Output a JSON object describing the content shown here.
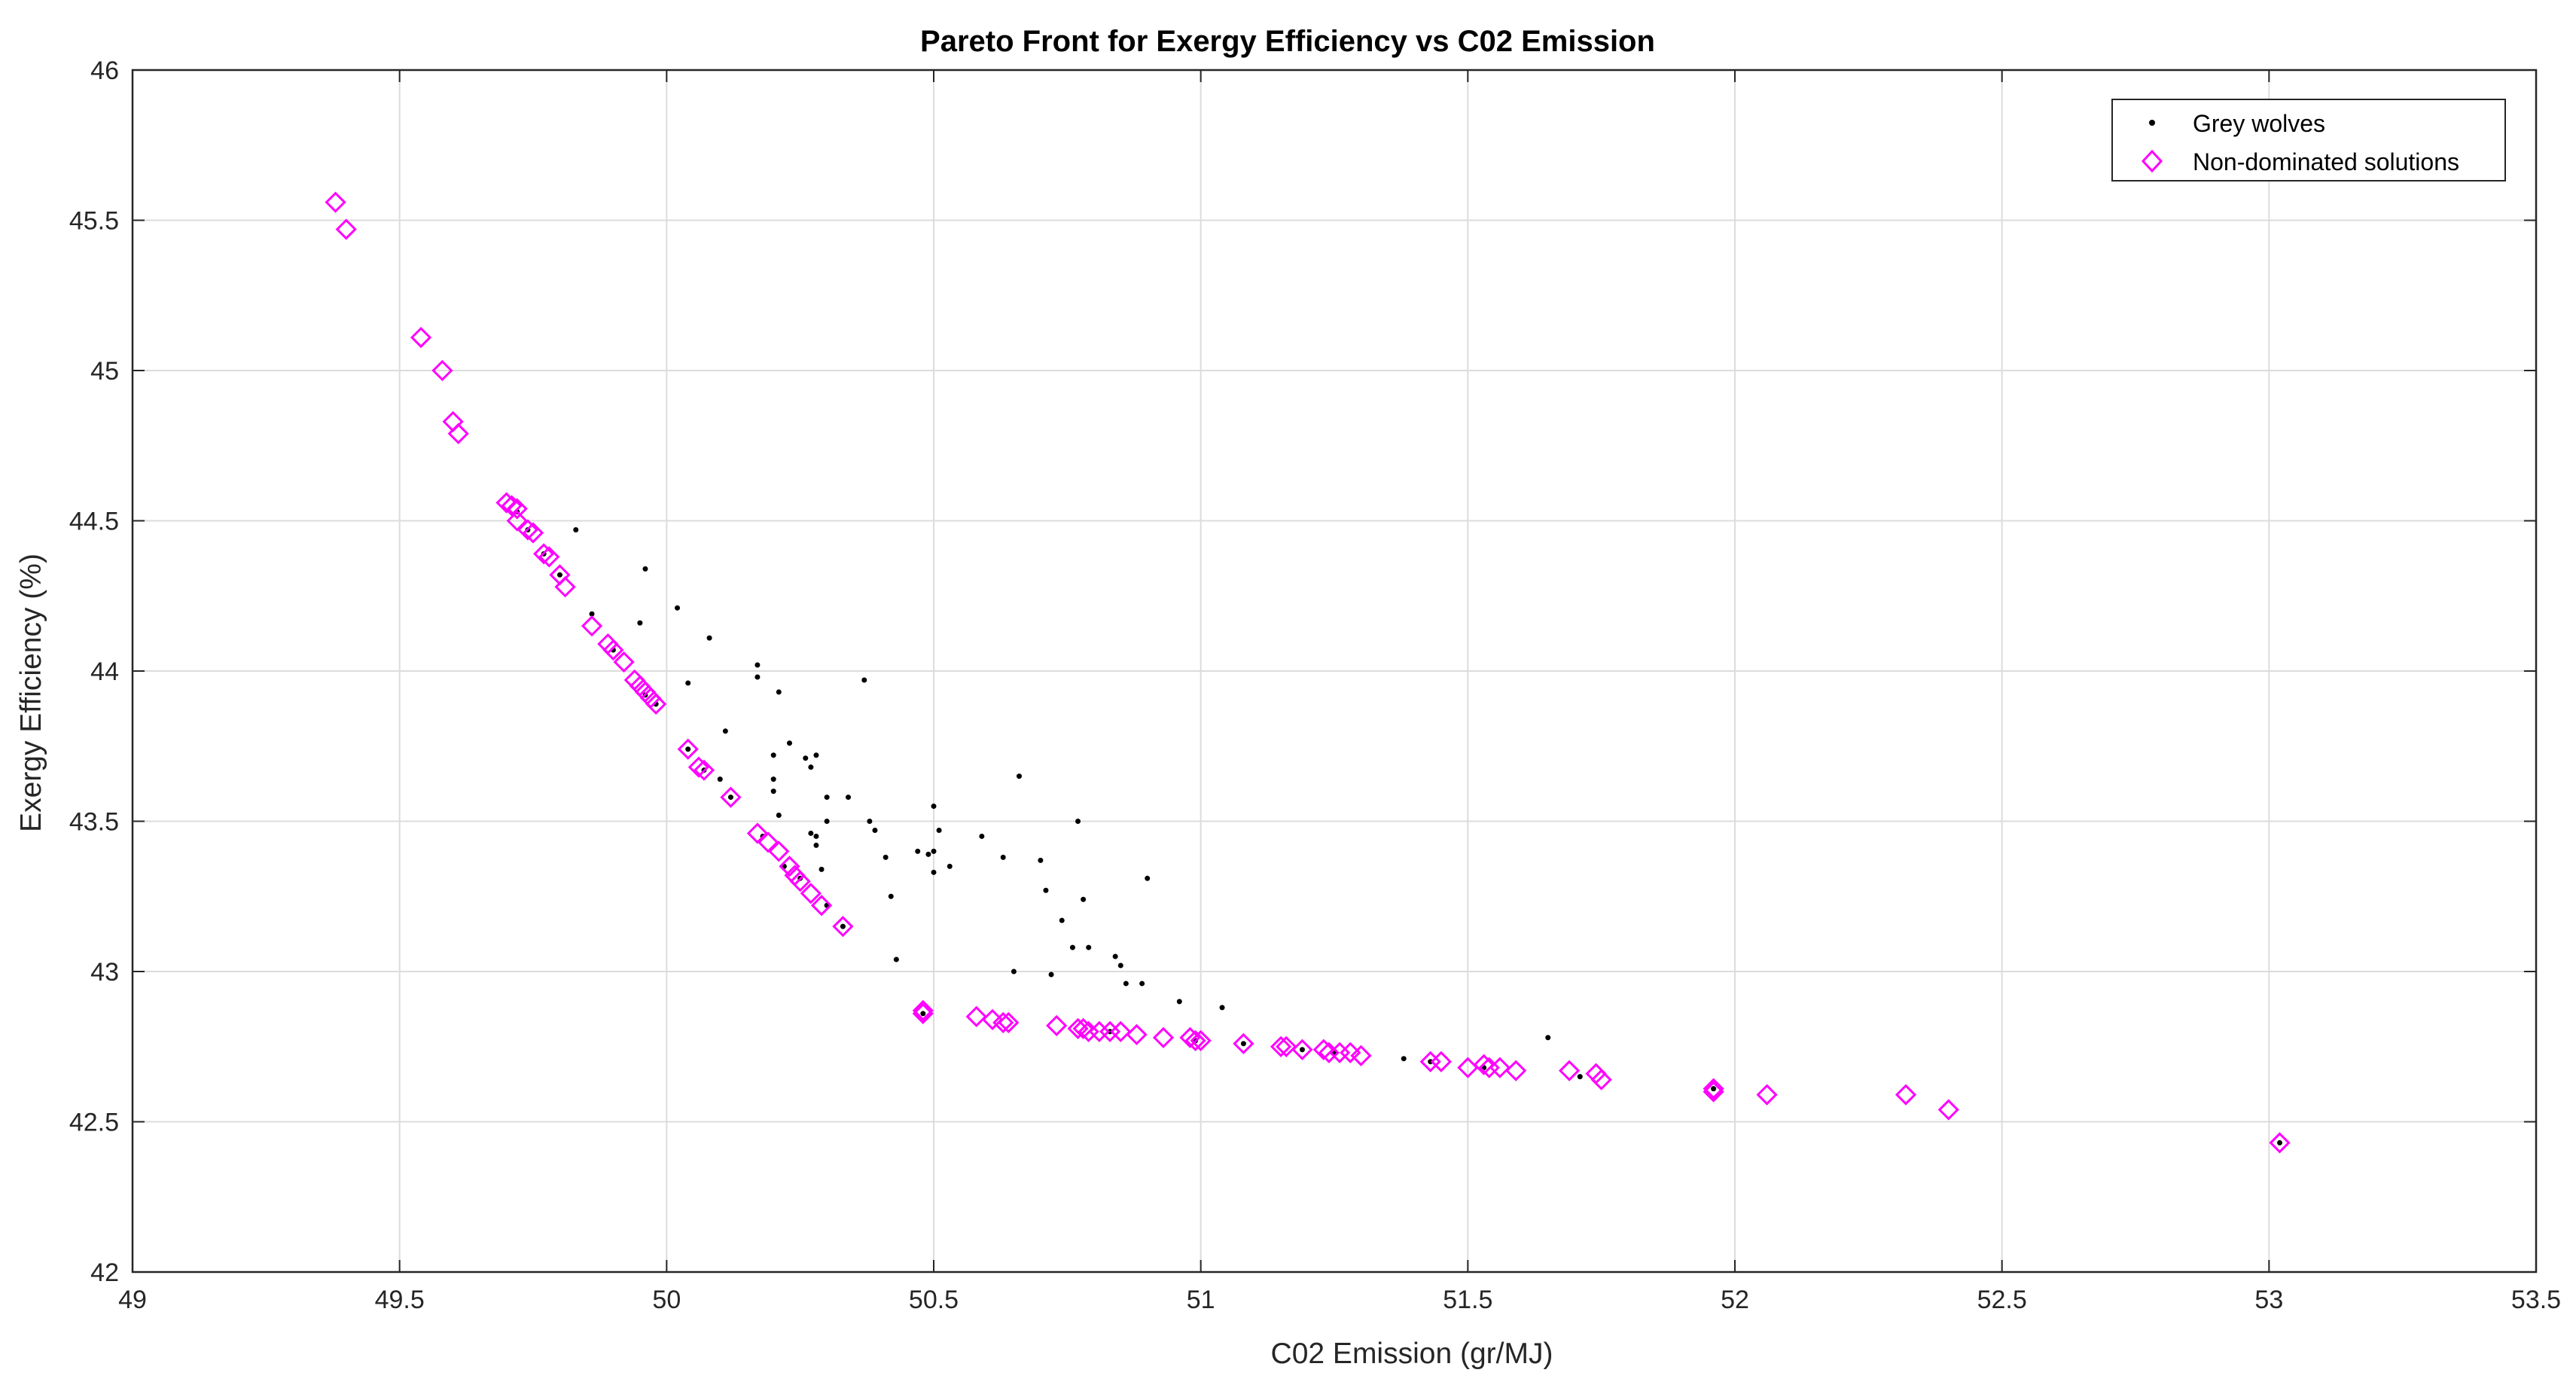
{
  "colors": {
    "background": "#ffffff",
    "axis": "#262626",
    "grid": "#dcdcdc",
    "wolves": "#000000",
    "nondominated": "#ff00ff"
  },
  "chart_data": {
    "type": "scatter",
    "title": "Pareto Front for Exergy Efficiency vs C02 Emission",
    "xlabel": "C02 Emission (gr/MJ)",
    "ylabel": "Exergy Efficiency (%)",
    "xlim": [
      49,
      53.5
    ],
    "ylim": [
      42,
      46
    ],
    "xticks": [
      49,
      49.5,
      50,
      50.5,
      51,
      51.5,
      52,
      52.5,
      53,
      53.5
    ],
    "xtick_labels": [
      "49",
      "49.5",
      "50",
      "50.5",
      "51",
      "51.5",
      "52",
      "52.5",
      "53",
      "53.5"
    ],
    "yticks": [
      42,
      42.5,
      43,
      43.5,
      44,
      44.5,
      45,
      45.5,
      46
    ],
    "ytick_labels": [
      "42",
      "42.5",
      "43",
      "43.5",
      "44",
      "44.5",
      "45",
      "45.5",
      "46"
    ],
    "grid": true,
    "legend": {
      "position": "top-right",
      "entries": [
        "Grey wolves",
        "Non-dominated solutions"
      ]
    },
    "series": [
      {
        "name": "Grey wolves",
        "marker": "dot",
        "color": "#000000",
        "points": [
          [
            49.72,
            44.53
          ],
          [
            49.74,
            44.47
          ],
          [
            49.77,
            44.39
          ],
          [
            49.8,
            44.32
          ],
          [
            49.83,
            44.47
          ],
          [
            49.86,
            44.19
          ],
          [
            49.9,
            44.07
          ],
          [
            49.95,
            44.16
          ],
          [
            49.96,
            44.34
          ],
          [
            49.96,
            43.92
          ],
          [
            49.98,
            43.89
          ],
          [
            50.02,
            44.21
          ],
          [
            50.04,
            43.96
          ],
          [
            50.04,
            43.74
          ],
          [
            50.07,
            43.67
          ],
          [
            50.08,
            44.11
          ],
          [
            50.1,
            43.64
          ],
          [
            50.11,
            43.8
          ],
          [
            50.12,
            43.58
          ],
          [
            50.17,
            44.02
          ],
          [
            50.17,
            43.98
          ],
          [
            50.18,
            43.45
          ],
          [
            50.2,
            43.72
          ],
          [
            50.2,
            43.64
          ],
          [
            50.2,
            43.6
          ],
          [
            50.21,
            43.93
          ],
          [
            50.21,
            43.52
          ],
          [
            50.22,
            43.35
          ],
          [
            50.23,
            43.76
          ],
          [
            50.25,
            43.31
          ],
          [
            50.26,
            43.71
          ],
          [
            50.27,
            43.68
          ],
          [
            50.27,
            43.46
          ],
          [
            50.28,
            43.72
          ],
          [
            50.28,
            43.45
          ],
          [
            50.28,
            43.42
          ],
          [
            50.29,
            43.34
          ],
          [
            50.3,
            43.58
          ],
          [
            50.3,
            43.5
          ],
          [
            50.3,
            43.22
          ],
          [
            50.33,
            43.15
          ],
          [
            50.34,
            43.58
          ],
          [
            50.37,
            43.97
          ],
          [
            50.38,
            43.5
          ],
          [
            50.39,
            43.47
          ],
          [
            50.41,
            43.38
          ],
          [
            50.42,
            43.25
          ],
          [
            50.43,
            43.04
          ],
          [
            50.47,
            43.4
          ],
          [
            50.48,
            42.86
          ],
          [
            50.49,
            43.39
          ],
          [
            50.5,
            43.4
          ],
          [
            50.5,
            43.33
          ],
          [
            50.5,
            43.55
          ],
          [
            50.51,
            43.47
          ],
          [
            50.53,
            43.35
          ],
          [
            50.59,
            43.45
          ],
          [
            50.63,
            43.38
          ],
          [
            50.65,
            43.0
          ],
          [
            50.66,
            43.65
          ],
          [
            50.7,
            43.37
          ],
          [
            50.71,
            43.27
          ],
          [
            50.72,
            42.99
          ],
          [
            50.74,
            43.17
          ],
          [
            50.76,
            43.08
          ],
          [
            50.77,
            43.5
          ],
          [
            50.78,
            43.24
          ],
          [
            50.79,
            43.08
          ],
          [
            50.83,
            42.8
          ],
          [
            50.84,
            43.05
          ],
          [
            50.85,
            43.02
          ],
          [
            50.86,
            42.96
          ],
          [
            50.89,
            42.96
          ],
          [
            50.9,
            43.31
          ],
          [
            50.96,
            42.9
          ],
          [
            50.99,
            42.77
          ],
          [
            51.04,
            42.88
          ],
          [
            51.08,
            42.76
          ],
          [
            51.19,
            42.74
          ],
          [
            51.25,
            42.73
          ],
          [
            51.38,
            42.71
          ],
          [
            51.43,
            42.7
          ],
          [
            51.53,
            42.68
          ],
          [
            51.65,
            42.78
          ],
          [
            51.71,
            42.65
          ],
          [
            51.96,
            42.61
          ],
          [
            53.02,
            42.43
          ]
        ]
      },
      {
        "name": "Non-dominated solutions",
        "marker": "diamond",
        "color": "#ff00ff",
        "points": [
          [
            49.38,
            45.56
          ],
          [
            49.4,
            45.47
          ],
          [
            49.54,
            45.11
          ],
          [
            49.58,
            45.0
          ],
          [
            49.6,
            44.83
          ],
          [
            49.61,
            44.79
          ],
          [
            49.7,
            44.56
          ],
          [
            49.71,
            44.55
          ],
          [
            49.72,
            44.54
          ],
          [
            49.72,
            44.5
          ],
          [
            49.74,
            44.47
          ],
          [
            49.75,
            44.46
          ],
          [
            49.77,
            44.39
          ],
          [
            49.78,
            44.38
          ],
          [
            49.8,
            44.32
          ],
          [
            49.81,
            44.28
          ],
          [
            49.86,
            44.15
          ],
          [
            49.89,
            44.09
          ],
          [
            49.9,
            44.07
          ],
          [
            49.92,
            44.03
          ],
          [
            49.94,
            43.97
          ],
          [
            49.95,
            43.95
          ],
          [
            49.96,
            43.93
          ],
          [
            49.97,
            43.91
          ],
          [
            49.98,
            43.89
          ],
          [
            50.04,
            43.74
          ],
          [
            50.06,
            43.68
          ],
          [
            50.07,
            43.67
          ],
          [
            50.12,
            43.58
          ],
          [
            50.17,
            43.46
          ],
          [
            50.19,
            43.43
          ],
          [
            50.21,
            43.4
          ],
          [
            50.23,
            43.35
          ],
          [
            50.24,
            43.32
          ],
          [
            50.25,
            43.3
          ],
          [
            50.27,
            43.26
          ],
          [
            50.29,
            43.22
          ],
          [
            50.33,
            43.15
          ],
          [
            50.48,
            42.87
          ],
          [
            50.48,
            42.86
          ],
          [
            50.58,
            42.85
          ],
          [
            50.61,
            42.84
          ],
          [
            50.63,
            42.83
          ],
          [
            50.64,
            42.83
          ],
          [
            50.73,
            42.82
          ],
          [
            50.77,
            42.81
          ],
          [
            50.78,
            42.81
          ],
          [
            50.79,
            42.8
          ],
          [
            50.81,
            42.8
          ],
          [
            50.83,
            42.8
          ],
          [
            50.85,
            42.8
          ],
          [
            50.88,
            42.79
          ],
          [
            50.93,
            42.78
          ],
          [
            50.98,
            42.78
          ],
          [
            50.99,
            42.77
          ],
          [
            51.0,
            42.77
          ],
          [
            51.08,
            42.76
          ],
          [
            51.15,
            42.75
          ],
          [
            51.16,
            42.75
          ],
          [
            51.19,
            42.74
          ],
          [
            51.23,
            42.74
          ],
          [
            51.24,
            42.73
          ],
          [
            51.26,
            42.73
          ],
          [
            51.28,
            42.73
          ],
          [
            51.3,
            42.72
          ],
          [
            51.43,
            42.7
          ],
          [
            51.45,
            42.7
          ],
          [
            51.5,
            42.68
          ],
          [
            51.53,
            42.69
          ],
          [
            51.54,
            42.68
          ],
          [
            51.56,
            42.68
          ],
          [
            51.59,
            42.67
          ],
          [
            51.69,
            42.67
          ],
          [
            51.74,
            42.66
          ],
          [
            51.75,
            42.64
          ],
          [
            51.96,
            42.61
          ],
          [
            51.96,
            42.6
          ],
          [
            52.06,
            42.59
          ],
          [
            52.32,
            42.59
          ],
          [
            52.4,
            42.54
          ],
          [
            53.02,
            42.43
          ]
        ]
      }
    ]
  }
}
